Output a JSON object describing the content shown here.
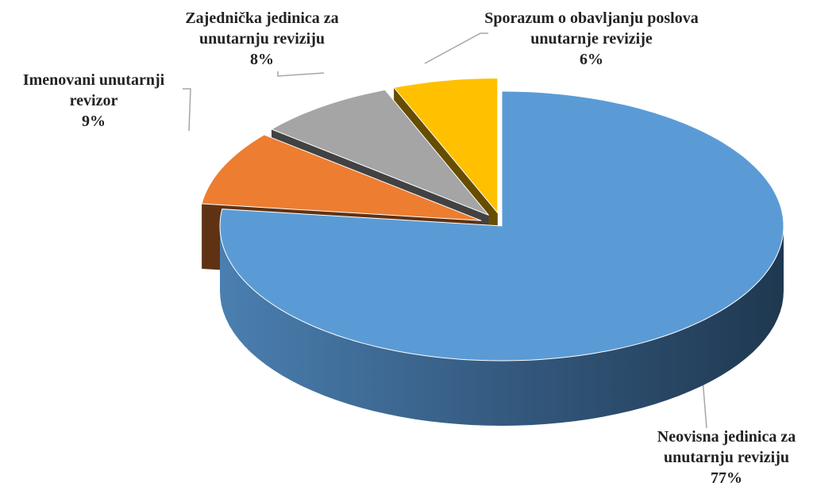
{
  "chart_data": {
    "type": "pie",
    "categories": [
      "Neovisna jedinica za unutarnju reviziju",
      "Imenovani unutarnji revizor",
      "Zajednička jedinica za unutarnju reviziju",
      "Sporazum o obavljanju poslova unutarnje revizije"
    ],
    "values": [
      77,
      9,
      8,
      6
    ],
    "value_labels": [
      "77%",
      "9%",
      "8%",
      "6%"
    ],
    "colors": [
      "#5b9bd5",
      "#ed7d31",
      "#a5a5a5",
      "#ffc000"
    ]
  }
}
